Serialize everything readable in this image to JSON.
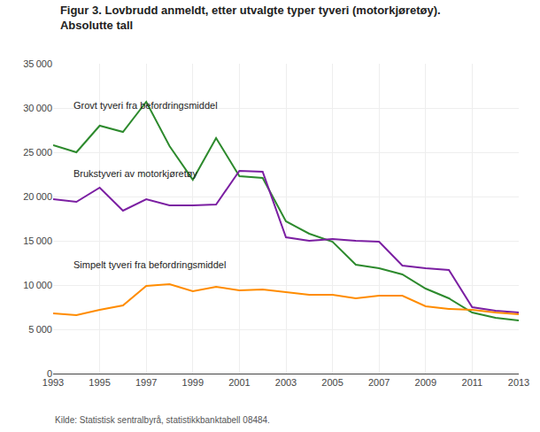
{
  "chart_data": {
    "type": "line",
    "title": "Figur 3. Lovbrudd anmeldt, etter utvalgte typer tyveri (motorkjøretøy).",
    "subtitle": "Absolutte tall",
    "footnote": "Kilde: Statistisk sentralbyrå, statistikkbanktabell 08484.",
    "x": [
      1993,
      1994,
      1995,
      1996,
      1997,
      1998,
      1999,
      2000,
      2001,
      2002,
      2003,
      2004,
      2005,
      2006,
      2007,
      2008,
      2009,
      2010,
      2011,
      2012,
      2013
    ],
    "series": [
      {
        "color": "#2d8a2d",
        "values": [
          25800,
          25000,
          28000,
          27300,
          30700,
          25700,
          21900,
          26600,
          22300,
          22100,
          17200,
          15800,
          14900,
          12300,
          11900,
          11200,
          9600,
          8500,
          6900,
          6300,
          6000
        ]
      },
      {
        "color": "#7b1fa2",
        "values": [
          19700,
          19400,
          21000,
          18400,
          19700,
          19000,
          19000,
          19100,
          22900,
          22800,
          15400,
          15000,
          15200,
          15000,
          14900,
          12200,
          11900,
          11700,
          7500,
          7100,
          6900
        ]
      },
      {
        "color": "#ff8c00",
        "values": [
          6800,
          6600,
          7200,
          7700,
          9900,
          10100,
          9300,
          9800,
          9400,
          9500,
          9200,
          8900,
          8900,
          8500,
          8800,
          8800,
          7600,
          7300,
          7200,
          6900,
          6700
        ]
      }
    ],
    "annotations": [
      {
        "text": "Grovt tyveri fra befordringsmiddel",
        "x": 1993.8,
        "y": 29500
      },
      {
        "text": "Brukstyveri av motorkjøretøy",
        "x": 1993.8,
        "y": 21800
      },
      {
        "text": "Simpelt tyveri fra befordringsmiddel",
        "x": 1993.8,
        "y": 11500
      }
    ],
    "xlim": [
      1993,
      2013
    ],
    "xticks": [
      1993,
      1995,
      1997,
      1999,
      2001,
      2003,
      2005,
      2007,
      2009,
      2011,
      2013
    ],
    "ylim": [
      0,
      35000
    ],
    "yticks": [
      0,
      {
        "value": 5000,
        "label": "5 000"
      },
      {
        "value": 10000,
        "label": "10 000"
      },
      {
        "value": 15000,
        "label": "15 000"
      },
      {
        "value": 20000,
        "label": "20 000"
      },
      {
        "value": 25000,
        "label": "25 000"
      },
      {
        "value": 30000,
        "label": "30 000"
      },
      {
        "value": 35000,
        "label": "35 000"
      }
    ],
    "grid": true
  }
}
